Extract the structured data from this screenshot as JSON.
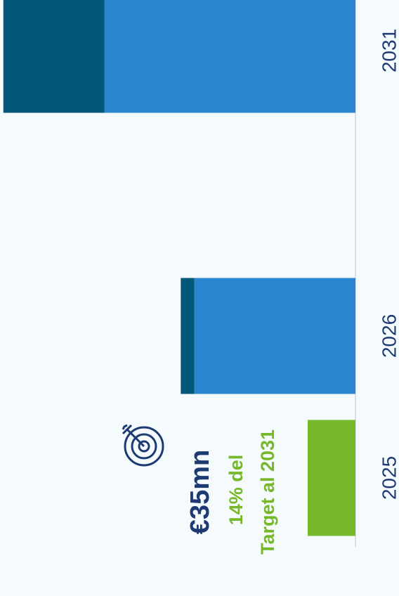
{
  "chart_data": {
    "type": "bar",
    "categories": [
      "2025",
      "2026",
      "2031"
    ],
    "series": [
      {
        "color": "#76b82a",
        "values": [
          35,
          null,
          null
        ]
      },
      {
        "color": "#2a86d0",
        "values": [
          null,
          118,
          184
        ]
      },
      {
        "color": "#03587a",
        "values": [
          null,
          10,
          74
        ]
      }
    ],
    "annotations": [
      "€35mn",
      "14% del",
      "Target al 2031"
    ]
  }
}
